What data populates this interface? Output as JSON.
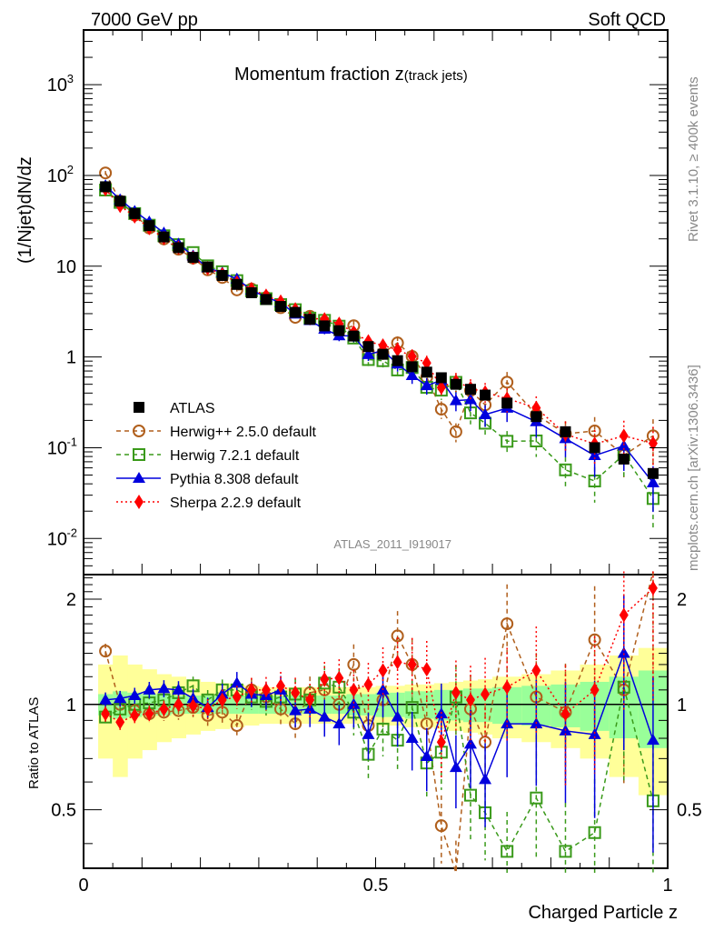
{
  "chart_data": {
    "type": "scatter",
    "header_left": "7000 GeV pp",
    "header_right": "Soft QCD",
    "title": "Momentum fraction z",
    "title_sub": "(track jets)",
    "ylabel": "(1/Njet)dN/dz",
    "ratio_ylabel": "Ratio to ATLAS",
    "xlabel": "Charged Particle z",
    "analysis_id": "ATLAS_2011_I919017",
    "side_text_top": "Rivet 3.1.10, ≥ 400k events",
    "side_text_bottom": "mcplots.cern.ch [arXiv:1306.3436]",
    "xlim": [
      0,
      1
    ],
    "ylim": [
      0.004,
      4000
    ],
    "yscale": "log",
    "ratio_ylim": [
      0.34,
      2.35
    ],
    "ratio_yscale": "log",
    "x_ticks": [
      "0",
      "0.5",
      "1"
    ],
    "y_ticks": [
      "10^-2",
      "10^-1",
      "1",
      "10",
      "10^2",
      "10^3"
    ],
    "ratio_y_ticks": [
      "0.5",
      "1",
      "2"
    ],
    "legend_position": "center-left",
    "x": [
      0.0375,
      0.0625,
      0.0875,
      0.1125,
      0.1375,
      0.1625,
      0.1875,
      0.2125,
      0.2375,
      0.2625,
      0.2875,
      0.3125,
      0.3375,
      0.3625,
      0.3875,
      0.4125,
      0.4375,
      0.4625,
      0.4875,
      0.5125,
      0.5375,
      0.5625,
      0.5875,
      0.6125,
      0.6375,
      0.6625,
      0.6875,
      0.725,
      0.775,
      0.825,
      0.875,
      0.925,
      0.975
    ],
    "data": {
      "name": "ATLAS",
      "values": [
        75,
        52,
        38,
        28,
        21,
        16,
        12.5,
        9.8,
        7.9,
        6.3,
        5.1,
        4.3,
        3.6,
        3.1,
        2.6,
        2.2,
        1.95,
        1.7,
        1.3,
        1.07,
        0.91,
        0.78,
        0.68,
        0.59,
        0.5,
        0.44,
        0.38,
        0.31,
        0.22,
        0.15,
        0.1,
        0.075,
        0.052
      ],
      "band_inner": [
        0.07,
        0.09,
        0.08,
        0.07,
        0.07,
        0.06,
        0.06,
        0.06,
        0.06,
        0.06,
        0.06,
        0.06,
        0.06,
        0.06,
        0.06,
        0.06,
        0.06,
        0.07,
        0.07,
        0.08,
        0.08,
        0.09,
        0.09,
        0.1,
        0.1,
        0.11,
        0.11,
        0.12,
        0.13,
        0.14,
        0.16,
        0.2,
        0.25
      ],
      "band_outer": [
        0.3,
        0.38,
        0.3,
        0.26,
        0.22,
        0.2,
        0.18,
        0.16,
        0.15,
        0.14,
        0.13,
        0.12,
        0.12,
        0.12,
        0.12,
        0.12,
        0.12,
        0.12,
        0.12,
        0.13,
        0.13,
        0.14,
        0.14,
        0.15,
        0.16,
        0.17,
        0.18,
        0.2,
        0.22,
        0.25,
        0.3,
        0.38,
        0.45
      ]
    },
    "series": [
      {
        "name": "Herwig++ 2.5.0 default",
        "color": "#b05f1c",
        "marker": "open-circle",
        "line": "dashed",
        "ratio": [
          1.42,
          1.0,
          0.96,
          0.94,
          0.95,
          0.96,
          0.98,
          0.93,
          0.95,
          0.87,
          1.1,
          1.05,
          0.97,
          0.88,
          1.08,
          1.1,
          1.0,
          1.3,
          0.87,
          1.03,
          1.57,
          1.3,
          0.88,
          0.45,
          0.3,
          0.97,
          0.78,
          1.7,
          1.05,
          0.95,
          1.53,
          1.1,
          2.6
        ]
      },
      {
        "name": "Herwig 7.2.1 default",
        "color": "#3a9a1a",
        "marker": "open-square",
        "line": "dashed",
        "ratio": [
          0.92,
          0.97,
          1.0,
          1.01,
          1.03,
          1.08,
          1.13,
          1.03,
          1.1,
          1.1,
          1.05,
          1.02,
          1.05,
          1.07,
          1.03,
          1.15,
          1.12,
          0.95,
          0.72,
          0.85,
          0.79,
          0.98,
          0.68,
          0.73,
          1.05,
          0.55,
          0.49,
          0.38,
          0.54,
          0.38,
          0.43,
          1.12,
          0.53
        ]
      },
      {
        "name": "Pythia 8.308 default",
        "color": "#0000dd",
        "marker": "filled-triangle",
        "line": "solid",
        "ratio": [
          1.03,
          1.04,
          1.06,
          1.1,
          1.11,
          1.1,
          1.04,
          0.98,
          1.07,
          1.15,
          1.07,
          1.06,
          1.1,
          0.96,
          0.97,
          0.92,
          0.88,
          1.0,
          0.82,
          1.1,
          0.92,
          0.8,
          0.71,
          0.94,
          0.66,
          0.77,
          0.61,
          0.88,
          0.88,
          0.84,
          0.82,
          1.4,
          0.79
        ]
      },
      {
        "name": "Sherpa 2.2.9 default",
        "color": "#ff0000",
        "marker": "filled-diamond",
        "line": "dotted",
        "ratio": [
          0.94,
          0.89,
          0.93,
          0.94,
          0.97,
          1.0,
          0.99,
          0.97,
          1.03,
          1.05,
          1.1,
          1.1,
          1.13,
          1.08,
          1.03,
          1.18,
          1.19,
          1.1,
          1.14,
          1.25,
          1.32,
          1.3,
          1.26,
          0.78,
          1.08,
          1.03,
          1.07,
          1.12,
          1.25,
          0.94,
          1.1,
          1.8,
          2.15
        ]
      }
    ]
  }
}
